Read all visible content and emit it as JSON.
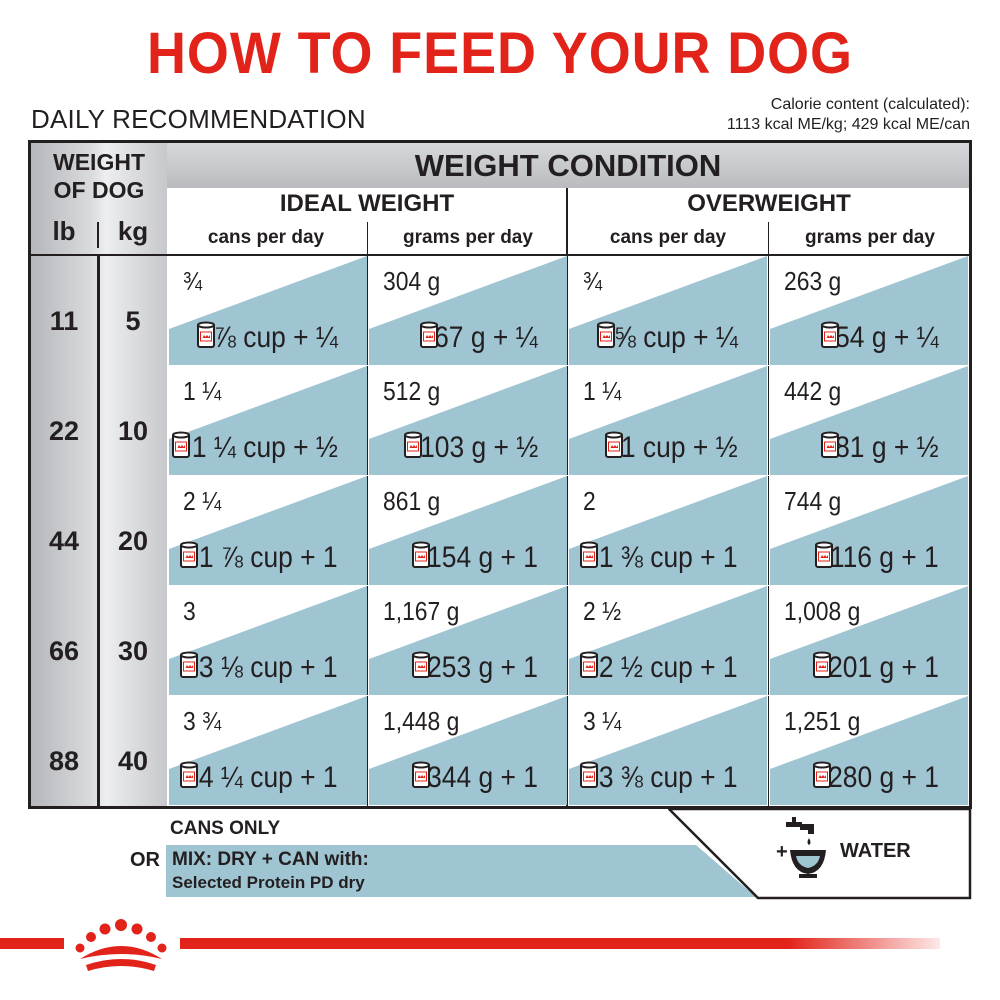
{
  "title": "HOW TO FEED YOUR DOG",
  "subtitle": "DAILY RECOMMENDATION",
  "calorie_line1": "Calorie content (calculated):",
  "calorie_line2": "1113 kcal ME/kg; 429 kcal ME/can",
  "table": {
    "weight_of_dog_line1": "WEIGHT",
    "weight_of_dog_line2": "OF DOG",
    "lb_label": "lb",
    "kg_label": "kg",
    "weight_condition": "WEIGHT CONDITION",
    "ideal_weight": "IDEAL WEIGHT",
    "overweight": "OVERWEIGHT",
    "col_cans_ideal": "cans per day",
    "col_grams_ideal": "grams per day",
    "col_cans_over": "cans per day",
    "col_grams_over": "grams per day",
    "rows": [
      {
        "lb": "11",
        "kg": "5",
        "ideal_cans": "¾",
        "ideal_cans_mix": "⅞ cup + ¼",
        "ideal_grams": "304 g",
        "ideal_grams_mix": "67 g + ¼",
        "over_cans": "¾",
        "over_cans_mix": "⅝ cup + ¼",
        "over_grams": "263 g",
        "over_grams_mix": "54 g + ¼"
      },
      {
        "lb": "22",
        "kg": "10",
        "ideal_cans": "1 ¼",
        "ideal_cans_mix": "1 ¼ cup + ½",
        "ideal_grams": "512 g",
        "ideal_grams_mix": "103 g + ½",
        "over_cans": "1 ¼",
        "over_cans_mix": "1 cup + ½",
        "over_grams": "442 g",
        "over_grams_mix": "81 g + ½"
      },
      {
        "lb": "44",
        "kg": "20",
        "ideal_cans": "2 ¼",
        "ideal_cans_mix": "1 ⅞ cup + 1",
        "ideal_grams": "861 g",
        "ideal_grams_mix": "154 g + 1",
        "over_cans": "2",
        "over_cans_mix": "1 ⅜ cup + 1",
        "over_grams": "744 g",
        "over_grams_mix": "116 g + 1"
      },
      {
        "lb": "66",
        "kg": "30",
        "ideal_cans": "3",
        "ideal_cans_mix": "3 ⅛ cup + 1",
        "ideal_grams": "1,167 g",
        "ideal_grams_mix": "253 g + 1",
        "over_cans": "2 ½",
        "over_cans_mix": "2 ½ cup + 1",
        "over_grams": "1,008 g",
        "over_grams_mix": "201 g + 1"
      },
      {
        "lb": "88",
        "kg": "40",
        "ideal_cans": "3 ¾",
        "ideal_cans_mix": "4 ¼ cup + 1",
        "ideal_grams": "1,448 g",
        "ideal_grams_mix": "344 g + 1",
        "over_cans": "3 ¼",
        "over_cans_mix": "3 ⅜ cup + 1",
        "over_grams": "1,251 g",
        "over_grams_mix": "280 g + 1"
      }
    ]
  },
  "legend": {
    "cans_only": "CANS ONLY",
    "or": "OR",
    "mix_line1": "MIX: DRY + CAN with:",
    "mix_line2": "Selected Protein PD dry",
    "water": "WATER",
    "water_icon": "faucet-bowl-icon",
    "logo_icon": "royal-canin-crown-icon"
  },
  "colors": {
    "brand_red": "#e2231a",
    "mix_blue": "#9fc4d2",
    "text": "#231f20"
  }
}
